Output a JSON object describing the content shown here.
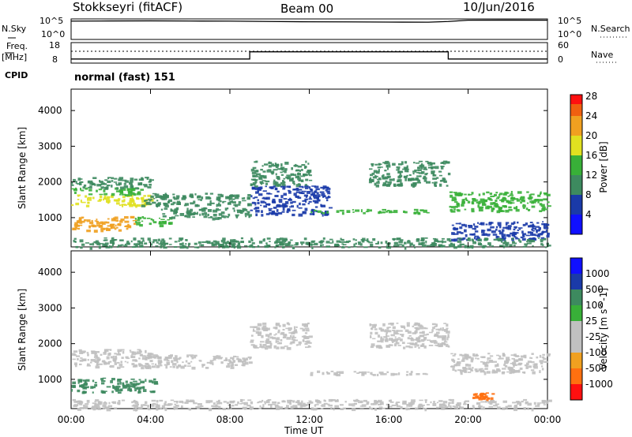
{
  "header": {
    "station": "Stokkseyri (fitACF)",
    "beam": "Beam 00",
    "date": "10/Jun/2016"
  },
  "noise_panel": {
    "left_label": "N.Sky",
    "right_label": "N.Search",
    "left_ticks": [
      "10^5",
      "10^0"
    ],
    "right_ticks": [
      "10^5",
      "10^0"
    ]
  },
  "freq_panel": {
    "left_label_1": "Freq.",
    "left_label_2": "[MHz]",
    "right_label": "Nave",
    "left_ticks": [
      "18",
      "8"
    ],
    "right_ticks": [
      "60",
      "0"
    ]
  },
  "cpid": {
    "label": "CPID",
    "value": "normal (fast) 151"
  },
  "x_axis": {
    "label": "Time UT",
    "ticks": [
      "00:00",
      "04:00",
      "08:00",
      "12:00",
      "16:00",
      "20:00",
      "00:00"
    ]
  },
  "colors": {
    "power": [
      "#1010ff",
      "#1a3aa8",
      "#3d8a5f",
      "#38b038",
      "#e0e020",
      "#f0a020",
      "#f06010",
      "#ff1010"
    ],
    "velocity": [
      "#ff1010",
      "#ff7010",
      "#f0a020",
      "#c0c0c0",
      "#c0c0c0",
      "#38b038",
      "#3d8a5f",
      "#1a3aa8",
      "#1010ff"
    ],
    "ground_scatter": "#c0c0c0"
  },
  "chart_data": [
    {
      "type": "line",
      "title": "N.Sky / N.Search",
      "x": [
        0,
        2,
        4,
        6,
        8,
        10,
        12,
        14,
        16,
        18,
        19,
        20,
        22,
        24
      ],
      "series": [
        {
          "name": "N.Sky",
          "values": [
            30000,
            32000,
            34000,
            31000,
            30000,
            24000,
            20000,
            19000,
            17000,
            16000,
            24000,
            48000,
            50000,
            48000
          ]
        }
      ],
      "yscale": "log",
      "ylim": [
        1,
        100000
      ]
    },
    {
      "type": "line",
      "title": "Freq. / Nave",
      "x": [
        0,
        9,
        9,
        19,
        19,
        24
      ],
      "series": [
        {
          "name": "Freq",
          "values": [
            10,
            10,
            13.5,
            13.5,
            10,
            10
          ]
        },
        {
          "name": "Nave",
          "values": [
            36,
            36,
            36,
            36,
            36,
            36
          ]
        }
      ],
      "ylim": [
        8,
        18
      ],
      "y2lim": [
        0,
        60
      ]
    },
    {
      "type": "heatmap",
      "title": "Power",
      "xlabel": "Time UT",
      "ylabel": "Slant Range [km]",
      "colorbar_label": "Power [dB]",
      "colorbar_ticks": [
        4,
        8,
        12,
        16,
        20,
        24,
        28
      ],
      "xlim": [
        0,
        24
      ],
      "ylim": [
        180,
        4600
      ],
      "yticks": [
        1000,
        2000,
        3000,
        4000
      ],
      "regions": [
        {
          "t0": 0.0,
          "t1": 4.0,
          "r0": 1350,
          "r1": 1650,
          "value": 18
        },
        {
          "t0": 0.0,
          "t1": 3.5,
          "r0": 1650,
          "r1": 1850,
          "value": 12
        },
        {
          "t0": 0.0,
          "t1": 3.2,
          "r0": 650,
          "r1": 1050,
          "value": 20
        },
        {
          "t0": 3.2,
          "t1": 5.0,
          "r0": 800,
          "r1": 1050,
          "value": 12
        },
        {
          "t0": 0.0,
          "t1": 4.0,
          "r0": 1850,
          "r1": 2150,
          "value": 8
        },
        {
          "t0": 3.5,
          "t1": 9.0,
          "r0": 1350,
          "r1": 1700,
          "value": 10
        },
        {
          "t0": 4.5,
          "t1": 9.0,
          "r0": 1000,
          "r1": 1300,
          "value": 8
        },
        {
          "t0": 9.0,
          "t1": 12.0,
          "r0": 1900,
          "r1": 2600,
          "value": 10
        },
        {
          "t0": 9.0,
          "t1": 13.0,
          "r0": 1100,
          "r1": 1900,
          "value": 6
        },
        {
          "t0": 12.0,
          "t1": 18.0,
          "r0": 1150,
          "r1": 1250,
          "value": 12
        },
        {
          "t0": 15.0,
          "t1": 19.0,
          "r0": 1900,
          "r1": 2600,
          "value": 8
        },
        {
          "t0": 19.0,
          "t1": 24.0,
          "r0": 1200,
          "r1": 1750,
          "value": 14
        },
        {
          "t0": 19.0,
          "t1": 24.0,
          "r0": 400,
          "r1": 900,
          "value": 7
        },
        {
          "t0": 0.0,
          "t1": 24.0,
          "r0": 180,
          "r1": 450,
          "value": 10
        }
      ]
    },
    {
      "type": "heatmap",
      "title": "Velocity",
      "xlabel": "Time UT",
      "ylabel": "Slant Range [km]",
      "colorbar_label": "Velocity [m s^-1]",
      "colorbar_ticks": [
        1000,
        500,
        100,
        25,
        -25,
        -100,
        -500,
        -1000
      ],
      "xlim": [
        0,
        24
      ],
      "ylim": [
        180,
        4600
      ],
      "yticks": [
        1000,
        2000,
        3000,
        4000
      ],
      "regions": [
        {
          "t0": 0.0,
          "t1": 4.2,
          "r0": 650,
          "r1": 1050,
          "value": 110,
          "gs": false
        },
        {
          "t0": 0.0,
          "t1": 4.0,
          "r0": 1350,
          "r1": 1850,
          "value": 0,
          "gs": true
        },
        {
          "t0": 3.5,
          "t1": 9.0,
          "r0": 1350,
          "r1": 1700,
          "value": 0,
          "gs": true
        },
        {
          "t0": 9.0,
          "t1": 12.0,
          "r0": 1900,
          "r1": 2600,
          "value": 0,
          "gs": true
        },
        {
          "t0": 12.0,
          "t1": 18.0,
          "r0": 1150,
          "r1": 1250,
          "value": 0,
          "gs": true
        },
        {
          "t0": 15.0,
          "t1": 19.0,
          "r0": 1900,
          "r1": 2600,
          "value": 0,
          "gs": true
        },
        {
          "t0": 19.0,
          "t1": 24.0,
          "r0": 1200,
          "r1": 1750,
          "value": 0,
          "gs": true
        },
        {
          "t0": 20.2,
          "t1": 21.2,
          "r0": 450,
          "r1": 650,
          "value": -300,
          "gs": false
        },
        {
          "t0": 0.0,
          "t1": 24.0,
          "r0": 180,
          "r1": 450,
          "value": 20,
          "gs": false
        }
      ]
    }
  ]
}
